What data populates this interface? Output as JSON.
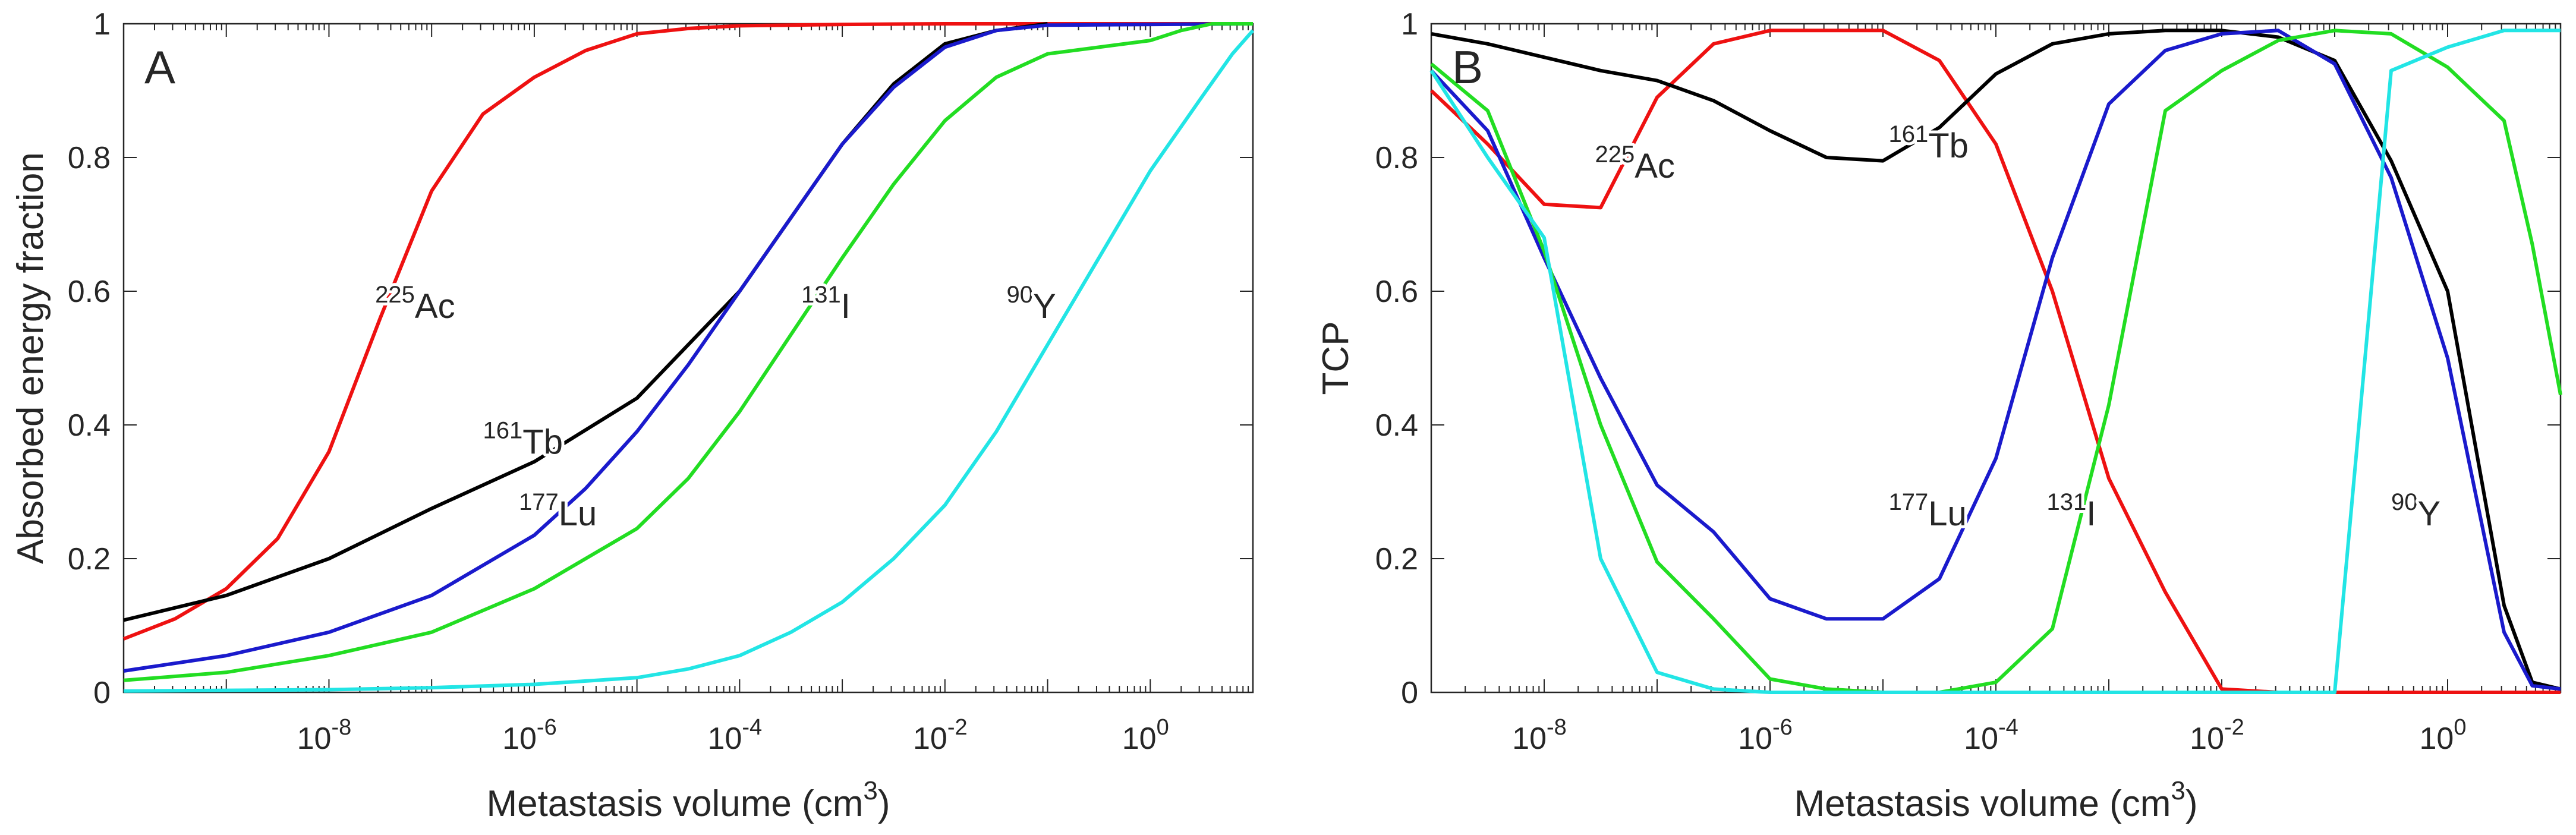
{
  "chart_data": [
    {
      "type": "line",
      "panel_label": "A",
      "xlabel": "Metastasis volume (cm",
      "xlabel_sup": "3",
      "xlabel_close": ")",
      "ylabel": "Absorbed energy fraction",
      "xscale": "log",
      "xlim": [
        1e-10,
        10
      ],
      "ylim": [
        0,
        1
      ],
      "xticks": [
        {
          "base": "10",
          "exp": "-8",
          "v": -8
        },
        {
          "base": "10",
          "exp": "-6",
          "v": -6
        },
        {
          "base": "10",
          "exp": "-4",
          "v": -4
        },
        {
          "base": "10",
          "exp": "-2",
          "v": -2
        },
        {
          "base": "10",
          "exp": "0",
          "v": 0
        }
      ],
      "yticks": [
        "0",
        "0.2",
        "0.4",
        "0.6",
        "0.8",
        "1"
      ],
      "series": [
        {
          "name": "225Ac",
          "sup": "225",
          "sym": "Ac",
          "color": "#ee1111",
          "points": [
            [
              -10,
              0.08
            ],
            [
              -9.5,
              0.11
            ],
            [
              -9,
              0.155
            ],
            [
              -8.5,
              0.23
            ],
            [
              -8,
              0.36
            ],
            [
              -7.5,
              0.56
            ],
            [
              -7,
              0.75
            ],
            [
              -6.5,
              0.865
            ],
            [
              -6,
              0.92
            ],
            [
              -5.5,
              0.96
            ],
            [
              -5,
              0.985
            ],
            [
              -4.5,
              0.993
            ],
            [
              -4,
              0.997
            ],
            [
              -3,
              0.999
            ],
            [
              -2,
              1
            ],
            [
              1,
              1
            ]
          ]
        },
        {
          "name": "161Tb",
          "sup": "161",
          "sym": "Tb",
          "color": "#000000",
          "points": [
            [
              -10,
              0.108
            ],
            [
              -9,
              0.145
            ],
            [
              -8,
              0.2
            ],
            [
              -7,
              0.275
            ],
            [
              -6,
              0.345
            ],
            [
              -5,
              0.44
            ],
            [
              -4,
              0.6
            ],
            [
              -3.5,
              0.71
            ],
            [
              -3,
              0.82
            ],
            [
              -2.5,
              0.91
            ],
            [
              -2,
              0.97
            ],
            [
              -1.5,
              0.99
            ],
            [
              -1,
              1
            ]
          ]
        },
        {
          "name": "177Lu",
          "sup": "177",
          "sym": "Lu",
          "color": "#1a1acc",
          "points": [
            [
              -10,
              0.032
            ],
            [
              -9,
              0.055
            ],
            [
              -8,
              0.09
            ],
            [
              -7,
              0.145
            ],
            [
              -6,
              0.235
            ],
            [
              -5.5,
              0.305
            ],
            [
              -5,
              0.39
            ],
            [
              -4.5,
              0.49
            ],
            [
              -4,
              0.6
            ],
            [
              -3.5,
              0.71
            ],
            [
              -3,
              0.82
            ],
            [
              -2.5,
              0.905
            ],
            [
              -2,
              0.965
            ],
            [
              -1.5,
              0.99
            ],
            [
              -1,
              0.998
            ],
            [
              1,
              1
            ]
          ]
        },
        {
          "name": "131I",
          "sup": "131",
          "sym": "I",
          "color": "#22dd22",
          "points": [
            [
              -10,
              0.018
            ],
            [
              -9,
              0.03
            ],
            [
              -8,
              0.055
            ],
            [
              -7,
              0.09
            ],
            [
              -6,
              0.155
            ],
            [
              -5,
              0.245
            ],
            [
              -4.5,
              0.32
            ],
            [
              -4,
              0.42
            ],
            [
              -3.5,
              0.535
            ],
            [
              -3,
              0.65
            ],
            [
              -2.5,
              0.76
            ],
            [
              -2,
              0.855
            ],
            [
              -1.5,
              0.92
            ],
            [
              -1,
              0.955
            ],
            [
              -0.5,
              0.965
            ],
            [
              0,
              0.975
            ],
            [
              0.3,
              0.99
            ],
            [
              0.6,
              1
            ],
            [
              1,
              1
            ]
          ]
        },
        {
          "name": "90Y",
          "sup": "90",
          "sym": "Y",
          "color": "#22e5e5",
          "points": [
            [
              -10,
              0.002
            ],
            [
              -8,
              0.004
            ],
            [
              -7,
              0.007
            ],
            [
              -6,
              0.012
            ],
            [
              -5,
              0.022
            ],
            [
              -4.5,
              0.035
            ],
            [
              -4,
              0.055
            ],
            [
              -3.5,
              0.09
            ],
            [
              -3,
              0.135
            ],
            [
              -2.5,
              0.2
            ],
            [
              -2,
              0.28
            ],
            [
              -1.5,
              0.39
            ],
            [
              -1,
              0.52
            ],
            [
              -0.5,
              0.65
            ],
            [
              0,
              0.78
            ],
            [
              0.5,
              0.89
            ],
            [
              0.8,
              0.955
            ],
            [
              1,
              0.99
            ]
          ]
        }
      ],
      "annotations": [
        {
          "sup": "225",
          "sym": "Ac",
          "x": -7.55,
          "y": 0.56
        },
        {
          "sup": "161",
          "sym": "Tb",
          "x": -6.5,
          "y": 0.357
        },
        {
          "sup": "177",
          "sym": "Lu",
          "x": -6.15,
          "y": 0.25
        },
        {
          "sup": "131",
          "sym": "I",
          "x": -3.4,
          "y": 0.56
        },
        {
          "sup": "90",
          "sym": "Y",
          "x": -1.4,
          "y": 0.56
        }
      ]
    },
    {
      "type": "line",
      "panel_label": "B",
      "xlabel": "Metastasis volume (cm",
      "xlabel_sup": "3",
      "xlabel_close": ")",
      "ylabel": "TCP",
      "xscale": "log",
      "xlim": [
        1e-09,
        10
      ],
      "ylim": [
        0,
        1
      ],
      "xticks": [
        {
          "base": "10",
          "exp": "-8",
          "v": -8
        },
        {
          "base": "10",
          "exp": "-6",
          "v": -6
        },
        {
          "base": "10",
          "exp": "-4",
          "v": -4
        },
        {
          "base": "10",
          "exp": "-2",
          "v": -2
        },
        {
          "base": "10",
          "exp": "0",
          "v": 0
        }
      ],
      "yticks": [
        "0",
        "0.2",
        "0.4",
        "0.6",
        "0.8",
        "1"
      ],
      "series": [
        {
          "name": "225Ac",
          "sup": "225",
          "sym": "Ac",
          "color": "#ee1111",
          "points": [
            [
              -9,
              0.9
            ],
            [
              -8.5,
              0.82
            ],
            [
              -8,
              0.73
            ],
            [
              -7.5,
              0.725
            ],
            [
              -7,
              0.89
            ],
            [
              -6.5,
              0.97
            ],
            [
              -6,
              0.99
            ],
            [
              -5.5,
              0.99
            ],
            [
              -5,
              0.99
            ],
            [
              -4.5,
              0.945
            ],
            [
              -4,
              0.82
            ],
            [
              -3.5,
              0.6
            ],
            [
              -3,
              0.32
            ],
            [
              -2.5,
              0.15
            ],
            [
              -2,
              0.005
            ],
            [
              -1.5,
              0
            ],
            [
              1,
              0
            ]
          ]
        },
        {
          "name": "161Tb",
          "sup": "161",
          "sym": "Tb",
          "color": "#000000",
          "points": [
            [
              -9,
              0.985
            ],
            [
              -8.5,
              0.97
            ],
            [
              -8,
              0.95
            ],
            [
              -7.5,
              0.93
            ],
            [
              -7,
              0.915
            ],
            [
              -6.5,
              0.885
            ],
            [
              -6,
              0.84
            ],
            [
              -5.5,
              0.8
            ],
            [
              -5,
              0.795
            ],
            [
              -4.5,
              0.845
            ],
            [
              -4,
              0.925
            ],
            [
              -3.5,
              0.97
            ],
            [
              -3,
              0.985
            ],
            [
              -2.5,
              0.99
            ],
            [
              -2,
              0.99
            ],
            [
              -1.5,
              0.98
            ],
            [
              -1,
              0.945
            ],
            [
              -0.5,
              0.795
            ],
            [
              0,
              0.6
            ],
            [
              0.5,
              0.13
            ],
            [
              0.75,
              0.015
            ],
            [
              1,
              0.005
            ]
          ]
        },
        {
          "name": "177Lu",
          "sup": "177",
          "sym": "Lu",
          "color": "#1a1acc",
          "points": [
            [
              -9,
              0.93
            ],
            [
              -8.5,
              0.84
            ],
            [
              -8,
              0.65
            ],
            [
              -7.5,
              0.47
            ],
            [
              -7,
              0.31
            ],
            [
              -6.5,
              0.24
            ],
            [
              -6,
              0.14
            ],
            [
              -5.5,
              0.11
            ],
            [
              -5,
              0.11
            ],
            [
              -4.5,
              0.17
            ],
            [
              -4,
              0.35
            ],
            [
              -3.5,
              0.65
            ],
            [
              -3,
              0.88
            ],
            [
              -2.5,
              0.96
            ],
            [
              -2,
              0.985
            ],
            [
              -1.5,
              0.99
            ],
            [
              -1,
              0.94
            ],
            [
              -0.5,
              0.77
            ],
            [
              0,
              0.5
            ],
            [
              0.5,
              0.09
            ],
            [
              0.75,
              0.01
            ],
            [
              1,
              0.005
            ]
          ]
        },
        {
          "name": "131I",
          "sup": "131",
          "sym": "I",
          "color": "#22dd22",
          "points": [
            [
              -9,
              0.94
            ],
            [
              -8.5,
              0.87
            ],
            [
              -8,
              0.66
            ],
            [
              -7.5,
              0.4
            ],
            [
              -7,
              0.195
            ],
            [
              -6.5,
              0.11
            ],
            [
              -6,
              0.02
            ],
            [
              -5.5,
              0.005
            ],
            [
              -5,
              0
            ],
            [
              -4.5,
              0
            ],
            [
              -4,
              0.015
            ],
            [
              -3.5,
              0.095
            ],
            [
              -3,
              0.43
            ],
            [
              -2.5,
              0.87
            ],
            [
              -2,
              0.93
            ],
            [
              -1.5,
              0.975
            ],
            [
              -1,
              0.99
            ],
            [
              -0.5,
              0.985
            ],
            [
              0,
              0.935
            ],
            [
              0.5,
              0.855
            ],
            [
              0.75,
              0.67
            ],
            [
              1,
              0.445
            ]
          ]
        },
        {
          "name": "90Y",
          "sup": "90",
          "sym": "Y",
          "color": "#22e5e5",
          "points": [
            [
              -9,
              0.93
            ],
            [
              -8.5,
              0.8
            ],
            [
              -8,
              0.68
            ],
            [
              -7.5,
              0.2
            ],
            [
              -7,
              0.03
            ],
            [
              -6.5,
              0.005
            ],
            [
              -6,
              0
            ],
            [
              -4,
              0
            ],
            [
              -1,
              0
            ],
            [
              -0.5,
              0.93
            ],
            [
              0,
              0.965
            ],
            [
              0.5,
              0.99
            ],
            [
              1,
              0.99
            ]
          ]
        }
      ],
      "annotations": [
        {
          "sup": "225",
          "sym": "Ac",
          "x": -7.55,
          "y": 0.77
        },
        {
          "sup": "161",
          "sym": "Tb",
          "x": -4.95,
          "y": 0.8
        },
        {
          "sup": "177",
          "sym": "Lu",
          "x": -4.95,
          "y": 0.25
        },
        {
          "sup": "131",
          "sym": "I",
          "x": -3.55,
          "y": 0.25
        },
        {
          "sup": "90",
          "sym": "Y",
          "x": -0.5,
          "y": 0.25
        }
      ]
    }
  ]
}
